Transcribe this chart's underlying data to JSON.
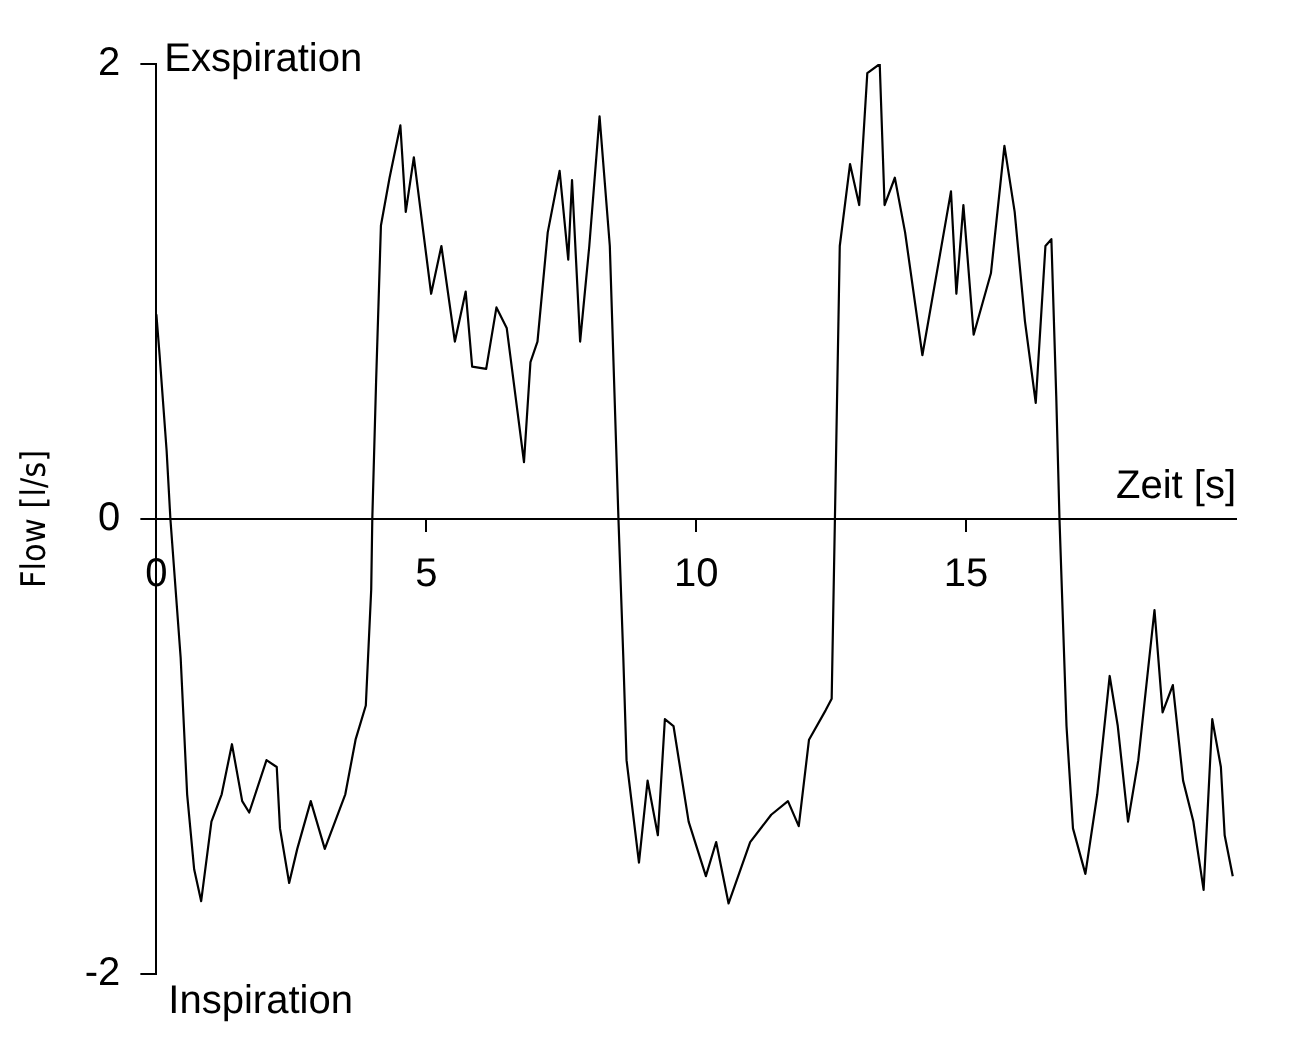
{
  "chart_data": {
    "type": "line",
    "xlabel": "Zeit [s]",
    "ylabel": "Flow [l/s]",
    "annotations": [
      "Exspiration",
      "Inspiration"
    ],
    "x": [
      0,
      0.06,
      0.19,
      0.26,
      0.45,
      0.57,
      0.7,
      0.83,
      1.02,
      1.21,
      1.4,
      1.59,
      1.72,
      2.04,
      2.23,
      2.29,
      2.46,
      2.61,
      2.86,
      3.12,
      3.31,
      3.5,
      3.69,
      3.88,
      3.98,
      4.0,
      4.07,
      4.16,
      4.32,
      4.52,
      4.62,
      4.77,
      5.09,
      5.28,
      5.53,
      5.73,
      5.85,
      6.11,
      6.3,
      6.49,
      6.81,
      6.93,
      7.06,
      7.25,
      7.47,
      7.63,
      7.7,
      7.85,
      8.02,
      8.21,
      8.4,
      8.56,
      8.65,
      8.71,
      8.94,
      9.1,
      9.29,
      9.42,
      9.58,
      9.86,
      10.18,
      10.37,
      10.6,
      11.0,
      11.39,
      11.7,
      11.9,
      12.09,
      12.4,
      12.51,
      12.57,
      12.66,
      12.85,
      13.02,
      13.17,
      13.4,
      13.49,
      13.68,
      13.87,
      14.19,
      14.5,
      14.72,
      14.82,
      14.95,
      15.14,
      15.46,
      15.71,
      15.9,
      16.09,
      16.29,
      16.47,
      16.58,
      16.67,
      16.73,
      16.86,
      16.98,
      17.21,
      17.43,
      17.66,
      17.81,
      18.0,
      18.19,
      18.49,
      18.64,
      18.83,
      19.02,
      19.21,
      19.4,
      19.56,
      19.72,
      19.79,
      19.94
    ],
    "series": [
      {
        "color": "#000000",
        "values": [
          0.9,
          0.72,
          0.3,
          0,
          -0.61,
          -1.21,
          -1.54,
          -1.68,
          -1.33,
          -1.21,
          -0.99,
          -1.24,
          -1.29,
          -1.06,
          -1.09,
          -1.36,
          -1.6,
          -1.45,
          -1.24,
          -1.45,
          -1.33,
          -1.21,
          -0.97,
          -0.82,
          -0.31,
          0,
          0.6,
          1.29,
          1.5,
          1.73,
          1.35,
          1.59,
          0.99,
          1.2,
          0.78,
          1.0,
          0.67,
          0.66,
          0.93,
          0.84,
          0.25,
          0.69,
          0.78,
          1.26,
          1.53,
          1.14,
          1.49,
          0.78,
          1.2,
          1.77,
          1.2,
          0,
          -0.61,
          -1.06,
          -1.51,
          -1.15,
          -1.39,
          -0.88,
          -0.91,
          -1.33,
          -1.57,
          -1.42,
          -1.69,
          -1.42,
          -1.3,
          -1.24,
          -1.35,
          -0.97,
          -0.84,
          -0.79,
          0,
          1.2,
          1.56,
          1.38,
          1.96,
          2.0,
          1.38,
          1.5,
          1.26,
          0.72,
          1.14,
          1.44,
          0.99,
          1.38,
          0.81,
          1.08,
          1.64,
          1.35,
          0.87,
          0.51,
          1.2,
          1.23,
          0.54,
          0,
          -0.91,
          -1.36,
          -1.56,
          -1.21,
          -0.69,
          -0.91,
          -1.33,
          -1.06,
          -0.4,
          -0.85,
          -0.73,
          -1.15,
          -1.33,
          -1.63,
          -0.88,
          -1.09,
          -1.39,
          -1.57
        ]
      }
    ],
    "xlim": [
      0,
      20
    ],
    "xticks": [
      0,
      5,
      10,
      15
    ],
    "ylim": [
      -2,
      2
    ],
    "yticks": [
      -2,
      0,
      2
    ],
    "grid": false,
    "legend": false,
    "marker": "none",
    "line_style": "solid"
  }
}
